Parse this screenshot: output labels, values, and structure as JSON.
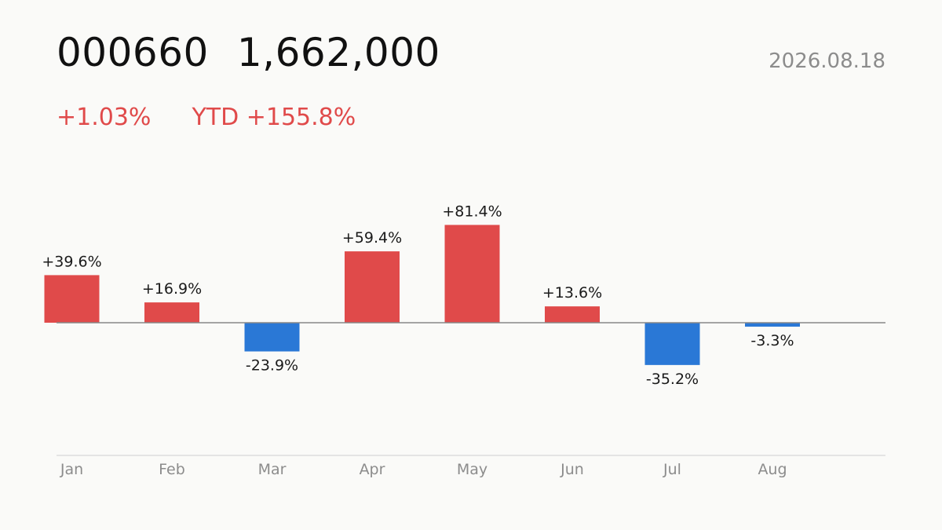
{
  "header": {
    "ticker": "000660",
    "price": "1,662,000",
    "date": "2026.08.18",
    "change": "+1.03%",
    "ytd": "YTD +155.8%"
  },
  "colors": {
    "positive": "#e04a4a",
    "negative": "#2a78d6",
    "baseline": "#888888",
    "axis_line": "#dddddd"
  },
  "chart_data": {
    "type": "bar",
    "categories": [
      "Jan",
      "Feb",
      "Mar",
      "Apr",
      "May",
      "Jun",
      "Jul",
      "Aug"
    ],
    "values": [
      39.6,
      16.9,
      -23.9,
      59.4,
      81.4,
      13.6,
      -35.2,
      -3.3
    ],
    "labels": [
      "+39.6%",
      "+16.9%",
      "-23.9%",
      "+59.4%",
      "+81.4%",
      "+13.6%",
      "-35.2%",
      "-3.3%"
    ],
    "title": "",
    "xlabel": "",
    "ylabel": "",
    "grid": false,
    "legend": "none"
  }
}
